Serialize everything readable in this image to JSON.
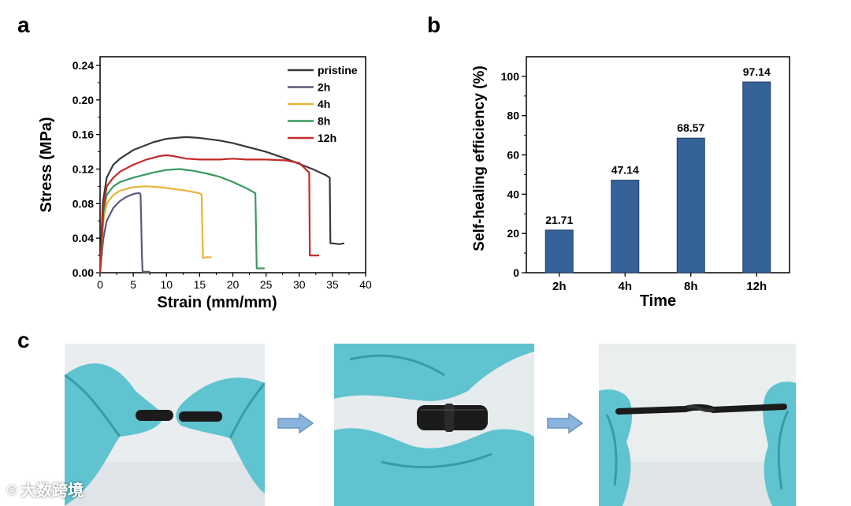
{
  "panels": {
    "a": "a",
    "b": "b",
    "c": "c"
  },
  "chart_data": [
    {
      "type": "line",
      "panel": "a",
      "title": "",
      "xlabel": "Strain (mm/mm)",
      "ylabel": "Stress (MPa)",
      "xlim": [
        0,
        40
      ],
      "ylim": [
        0,
        0.25
      ],
      "xticks": [
        "0",
        "5",
        "10",
        "15",
        "20",
        "25",
        "30",
        "35",
        "40"
      ],
      "yticks": [
        "0.00",
        "0.04",
        "0.08",
        "0.12",
        "0.16",
        "0.20",
        "0.24"
      ],
      "legend_position": "top-right",
      "series": [
        {
          "name": "pristine",
          "color": "#3a3a3a",
          "x": [
            0,
            0.4,
            1,
            2,
            3,
            5,
            8,
            10,
            12,
            13,
            15,
            18,
            20,
            22,
            25,
            28,
            30,
            32,
            34,
            34.6,
            34.7,
            35,
            36,
            36.8
          ],
          "y": [
            0,
            0.08,
            0.11,
            0.125,
            0.132,
            0.142,
            0.151,
            0.155,
            0.1565,
            0.157,
            0.156,
            0.153,
            0.15,
            0.146,
            0.14,
            0.132,
            0.126,
            0.12,
            0.113,
            0.11,
            0.034,
            0.034,
            0.033,
            0.034
          ]
        },
        {
          "name": "2h",
          "color": "#5a5a7a",
          "x": [
            0,
            0.5,
            1,
            2,
            3,
            4,
            5,
            5.5,
            6,
            6.1,
            6.2,
            6.3,
            6.4,
            6.5,
            7.5
          ],
          "y": [
            0,
            0.04,
            0.06,
            0.075,
            0.083,
            0.088,
            0.091,
            0.092,
            0.092,
            0.09,
            0.06,
            0.02,
            0.002,
            0.001,
            0.001
          ]
        },
        {
          "name": "4h",
          "color": "#e6b43c",
          "x": [
            0,
            0.5,
            1,
            2,
            3,
            5,
            7,
            9,
            11,
            13,
            15,
            15.3,
            15.5,
            16,
            16.8
          ],
          "y": [
            0,
            0.06,
            0.08,
            0.09,
            0.095,
            0.099,
            0.1,
            0.099,
            0.097,
            0.095,
            0.092,
            0.09,
            0.017,
            0.018,
            0.018
          ]
        },
        {
          "name": "8h",
          "color": "#3a9a60",
          "x": [
            0,
            0.5,
            1,
            2,
            3,
            5,
            8,
            10,
            12,
            14,
            16,
            18,
            20,
            22,
            23.4,
            23.6,
            24,
            24.8
          ],
          "y": [
            0,
            0.07,
            0.09,
            0.1,
            0.105,
            0.11,
            0.116,
            0.119,
            0.12,
            0.118,
            0.115,
            0.111,
            0.105,
            0.098,
            0.092,
            0.005,
            0.005,
            0.005
          ]
        },
        {
          "name": "12h",
          "color": "#c42a2a",
          "x": [
            0,
            0.5,
            1,
            2,
            3,
            5,
            7,
            9,
            10,
            11,
            13,
            15,
            18,
            20,
            22,
            25,
            28,
            30,
            31.5,
            31.6,
            32,
            33
          ],
          "y": [
            0,
            0.075,
            0.1,
            0.11,
            0.117,
            0.125,
            0.131,
            0.135,
            0.136,
            0.135,
            0.132,
            0.131,
            0.131,
            0.132,
            0.131,
            0.131,
            0.13,
            0.127,
            0.116,
            0.02,
            0.02,
            0.02
          ]
        }
      ]
    },
    {
      "type": "bar",
      "panel": "b",
      "title": "",
      "xlabel": "Time",
      "ylabel": "Self-healing efficiency (%)",
      "ylim": [
        0,
        110
      ],
      "yticks": [
        "0",
        "20",
        "40",
        "60",
        "80",
        "100"
      ],
      "categories": [
        "2h",
        "4h",
        "8h",
        "12h"
      ],
      "values": [
        21.71,
        47.14,
        68.57,
        97.14
      ],
      "value_labels": [
        "21.71",
        "47.14",
        "68.57",
        "97.14"
      ],
      "bar_color": "#356298",
      "bar_edge_color": "#1f3f66"
    }
  ],
  "photos": [
    {
      "name": "two separated cut ends held with blue gloves"
    },
    {
      "name": "cut ends rejoined and pressed together"
    },
    {
      "name": "healed strand stretched between gloved hands"
    }
  ],
  "colors": {
    "glove": "#5fc3d0",
    "glove_dark": "#3a9aa8",
    "strand": "#1b1b1b",
    "arrow": "#8ab4dd"
  },
  "watermark": "大数跨境"
}
